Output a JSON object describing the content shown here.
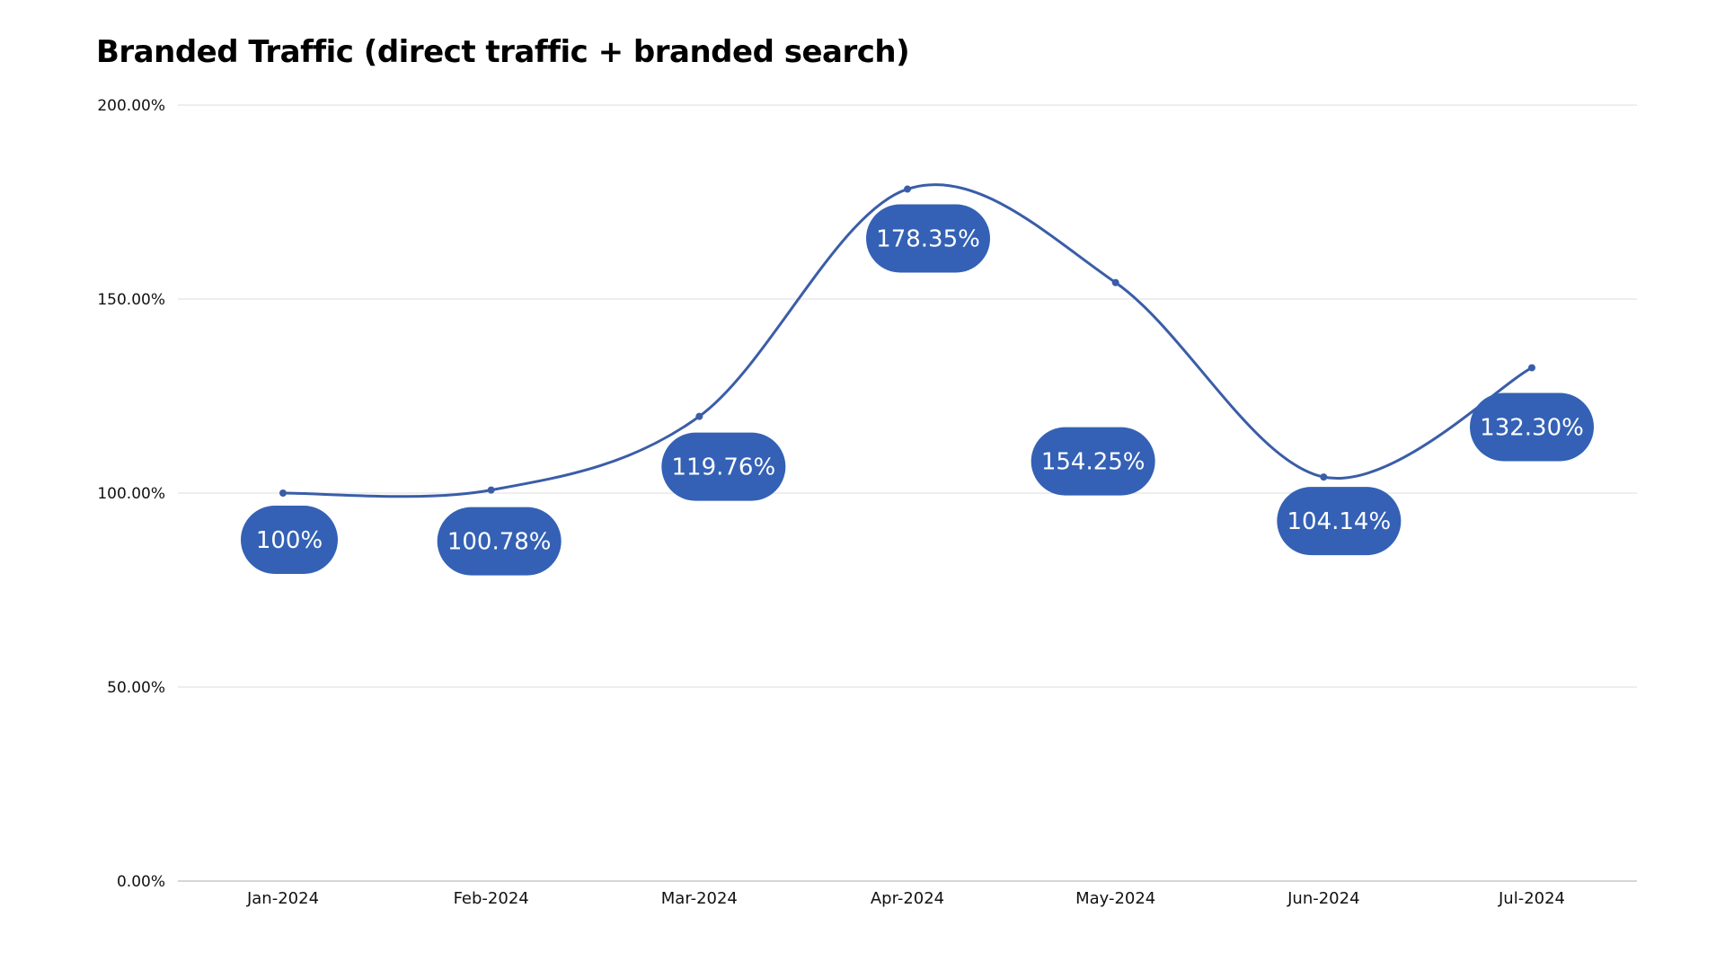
{
  "chart_data": {
    "type": "line",
    "title": "Branded Traffic (direct traffic + branded search)",
    "xlabel": "",
    "ylabel": "",
    "categories": [
      "Jan-2024",
      "Feb-2024",
      "Mar-2024",
      "Apr-2024",
      "May-2024",
      "Jun-2024",
      "Jul-2024"
    ],
    "values": [
      100,
      100.78,
      119.76,
      178.35,
      154.25,
      104.14,
      132.3
    ],
    "data_labels": [
      "100%",
      "100.78%",
      "119.76%",
      "178.35%",
      "154.25%",
      "104.14%",
      "132.30%"
    ],
    "ylim": [
      0,
      200
    ],
    "yticks": [
      0,
      50,
      100,
      150,
      200
    ],
    "ytick_labels": [
      "0.00%",
      "50.00%",
      "100.00%",
      "150.00%",
      "200.00%"
    ],
    "grid": true,
    "smooth": true,
    "line_color": "#3a5da8",
    "label_color": "#3461b5"
  }
}
